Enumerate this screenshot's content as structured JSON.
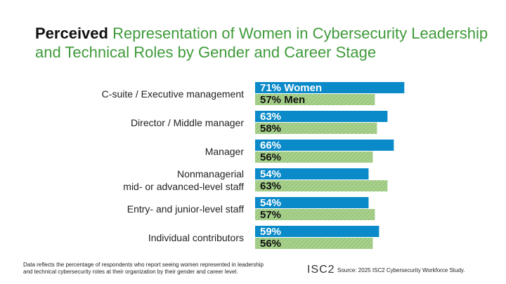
{
  "chart_data": {
    "type": "grouped-hbar",
    "title_emphasis": "Perceived",
    "title": "Representation of Women in Cybersecurity Leadership and Technical Roles by Gender and Career Stage",
    "categories": [
      "C-suite / Executive management",
      "Director / Middle manager",
      "Manager",
      "Nonmanagerial\nmid- or advanced-level staff",
      "Entry- and junior-level staff",
      "Individual contributors"
    ],
    "series": [
      {
        "name": "Women",
        "color": "#0a8ac9",
        "values": [
          71,
          63,
          66,
          54,
          54,
          59
        ],
        "value_labels": [
          "71%",
          "63%",
          "66%",
          "54%",
          "54%",
          "59%"
        ]
      },
      {
        "name": "Men",
        "color": "#a9d18e",
        "values": [
          57,
          58,
          56,
          63,
          57,
          56
        ],
        "value_labels": [
          "57%",
          "58%",
          "56%",
          "63%",
          "57%",
          "56%"
        ]
      }
    ],
    "footnote": "Data reflects the percentage of respondents who report seeing women represented in leadership\nand technical cybersecurity roles at their organization by their gender and career level.",
    "logo": "ISC2",
    "source": "Source: 2025 ISC2 Cybersecurity Workforce Study."
  }
}
